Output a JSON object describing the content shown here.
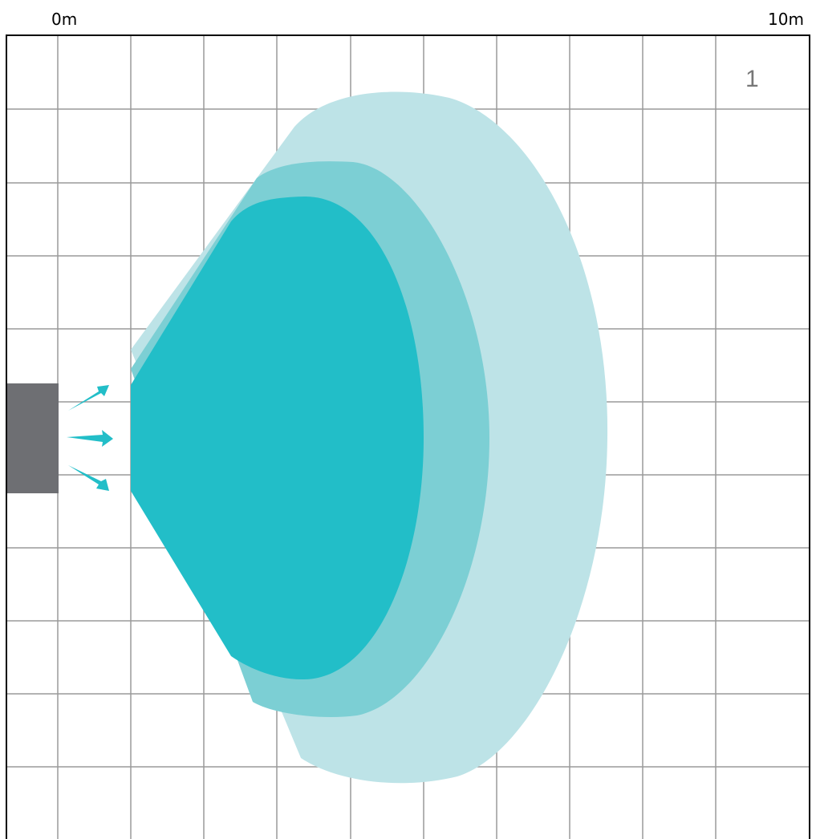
{
  "scale": {
    "start_label": "0m",
    "end_label": "10m",
    "start_m": 0,
    "end_m": 10
  },
  "figure": {
    "number_label": "1"
  },
  "colors": {
    "grid_line": "#9a9a9a",
    "border": "#000000",
    "device": "#6e6f73",
    "arrows": "#22bec8",
    "zone_outer": "#bde3e7",
    "zone_middle": "#7ccfd4",
    "zone_inner": "#22bec8"
  },
  "device": {
    "icon": "speaker-icon"
  },
  "arrows": [
    {
      "direction": "up-right"
    },
    {
      "direction": "right"
    },
    {
      "direction": "down-right"
    }
  ],
  "zones": [
    {
      "id": "outer"
    },
    {
      "id": "middle"
    },
    {
      "id": "inner"
    }
  ]
}
